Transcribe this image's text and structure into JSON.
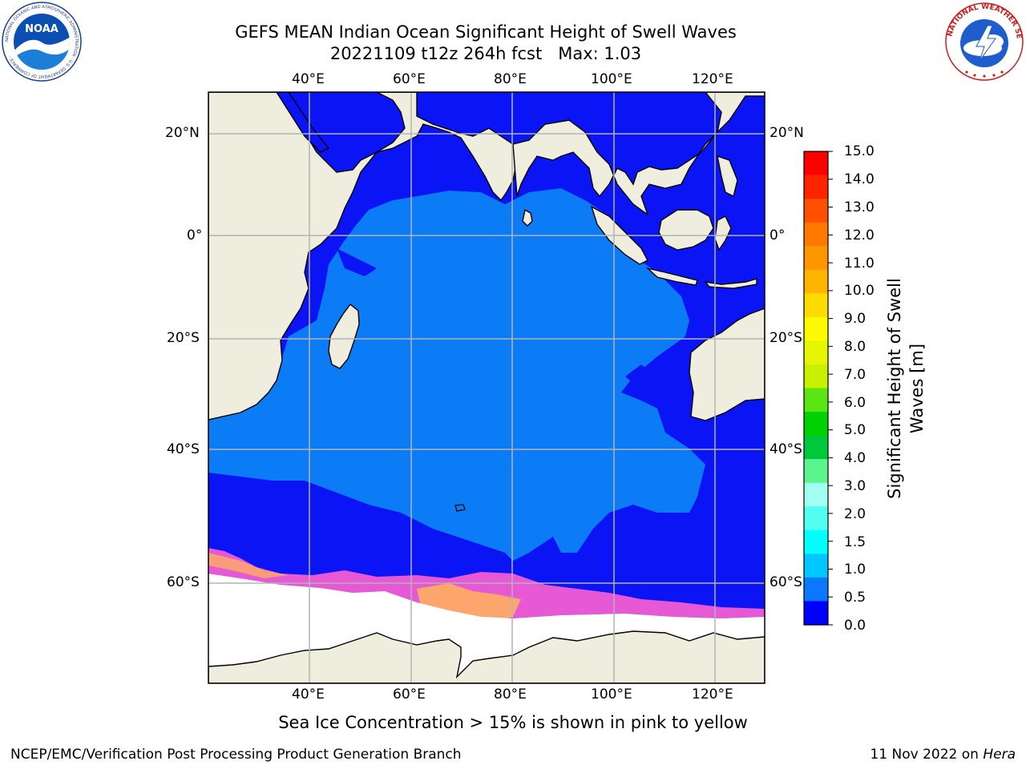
{
  "header": {
    "title_line1": "GEFS MEAN Indian Ocean Significant Height of Swell Waves",
    "title_line2_run": "20221109 t12z 264h fcst",
    "title_line2_max": "Max: 1.03"
  },
  "logos": {
    "noaa_text": "NOAA",
    "noaa_ring": "NATIONAL OCEANIC AND ATMOSPHERIC ADMINISTRATION · U.S. DEPARTMENT OF COMMERCE ·",
    "nws_ring": "NATIONAL WEATHER SERVICE"
  },
  "map": {
    "lon_ticks": [
      "40°E",
      "60°E",
      "80°E",
      "100°E",
      "120°E"
    ],
    "lat_ticks_left": [
      "20°N",
      "0°",
      "20°S",
      "40°S",
      "60°S"
    ],
    "lat_ticks_right": [
      "20°N",
      "0°",
      "20°S",
      "40°S",
      "60°S"
    ],
    "extent": {
      "lon": [
        20,
        130
      ],
      "lat": [
        -70,
        28
      ]
    },
    "colors": {
      "ocean_low": "#0a14f5",
      "ocean_mid": "#0b7cf5",
      "land": "#efedde",
      "ice": "#ffffff",
      "ice_edge_pink": "#ff5fd2",
      "ice_edge_orange": "#ffb35a",
      "grid": "#b4b4b4"
    }
  },
  "colorbar": {
    "title": "Significant Height of Swell Waves [m]",
    "labels": [
      "15.0",
      "14.0",
      "13.0",
      "12.0",
      "11.0",
      "10.0",
      "9.0",
      "8.0",
      "7.0",
      "6.0",
      "5.0",
      "4.0",
      "3.0",
      "2.0",
      "1.5",
      "1.0",
      "0.5",
      "0.0"
    ],
    "colors": [
      "#ff0000",
      "#ff2400",
      "#ff4f00",
      "#ff7800",
      "#ff9600",
      "#ffb400",
      "#ffdc00",
      "#fffa00",
      "#e6f500",
      "#c8f000",
      "#5ae614",
      "#00d200",
      "#00c83c",
      "#5af58c",
      "#a0fff0",
      "#50fff0",
      "#00ffff",
      "#00c8ff",
      "#0a78ff",
      "#0000ff"
    ]
  },
  "caption": "Sea Ice Concentration > 15% is shown in pink to yellow",
  "footer": {
    "left": "NCEP/EMC/Verification Post Processing Product Generation Branch",
    "right_date": "11 Nov 2022 on",
    "right_host": "Hera"
  }
}
